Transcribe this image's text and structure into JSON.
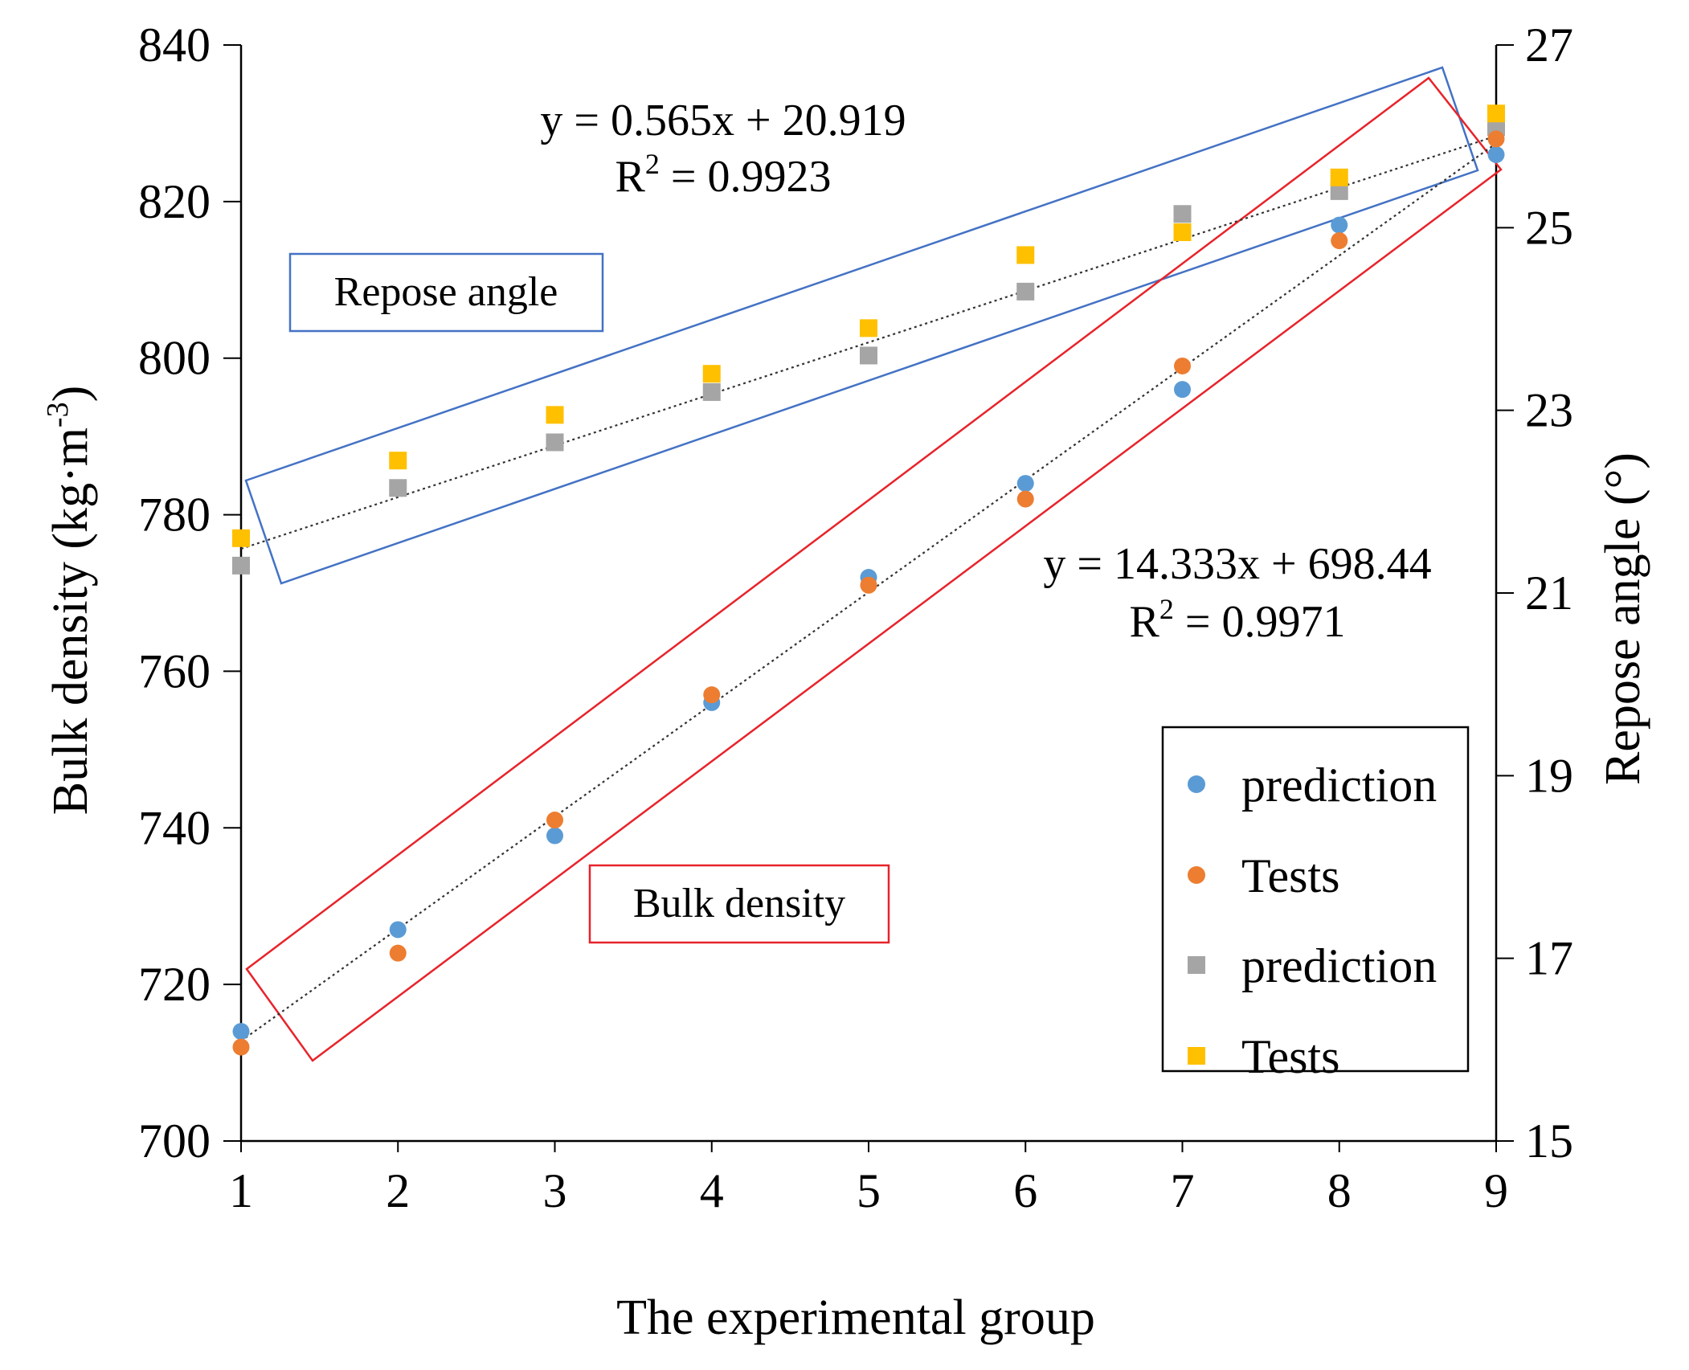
{
  "chart_data": {
    "type": "scatter",
    "title": "",
    "xlabel": "The experimental group",
    "ylabel_left": "Bulk density (kg·m",
    "ylabel_left_sup": "-3",
    "ylabel_left_close": ")",
    "ylabel_right": "Repose angle (°)",
    "x": [
      1,
      2,
      3,
      4,
      5,
      6,
      7,
      8,
      9
    ],
    "xlim": [
      1,
      9
    ],
    "ylim_left": [
      700,
      840
    ],
    "ylim_right": [
      15,
      27
    ],
    "xticks": [
      "1",
      "2",
      "3",
      "4",
      "5",
      "6",
      "7",
      "8",
      "9"
    ],
    "yticks_left": [
      "700",
      "720",
      "740",
      "760",
      "780",
      "800",
      "820",
      "840"
    ],
    "yticks_right": [
      "15",
      "17",
      "19",
      "21",
      "23",
      "25",
      "27"
    ],
    "grid": false,
    "legend_position": "bottom-right",
    "series": [
      {
        "name": "prediction",
        "axis": "left",
        "marker": "circle",
        "color": "#5B9BD5",
        "values": [
          714,
          727,
          739,
          756,
          772,
          784,
          796,
          817,
          826
        ]
      },
      {
        "name": "Tests",
        "axis": "left",
        "marker": "circle",
        "color": "#ED7D31",
        "values": [
          712,
          724,
          741,
          757,
          771,
          782,
          799,
          815,
          828
        ]
      },
      {
        "name": "prediction",
        "axis": "right",
        "marker": "square",
        "color": "#A5A5A5",
        "values": [
          21.3,
          22.15,
          22.65,
          23.2,
          23.6,
          24.3,
          25.15,
          25.4,
          26.1
        ]
      },
      {
        "name": "Tests",
        "axis": "right",
        "marker": "square",
        "color": "#FFC000",
        "values": [
          21.6,
          22.45,
          22.95,
          23.4,
          23.9,
          24.7,
          24.95,
          25.55,
          26.25
        ]
      }
    ],
    "trendlines": [
      {
        "axis": "left",
        "slope": 14.333,
        "intercept": 698.44,
        "equation": "y = 14.333x + 698.44",
        "r2_prefix": "R",
        "r2_sup": "2",
        "r2_value": " = 0.9971"
      },
      {
        "axis": "right",
        "slope": 0.565,
        "intercept": 20.919,
        "equation": "y = 0.565x + 20.919",
        "r2_prefix": "R",
        "r2_sup": "2",
        "r2_value": " = 0.9923"
      }
    ],
    "annotations": {
      "repose_label": "Repose angle",
      "bulk_label": "Bulk density"
    },
    "colors": {
      "repose_box": "#4472C4",
      "bulk_box": "#E8232A",
      "trendline": "#333333",
      "axis": "#000000"
    }
  }
}
